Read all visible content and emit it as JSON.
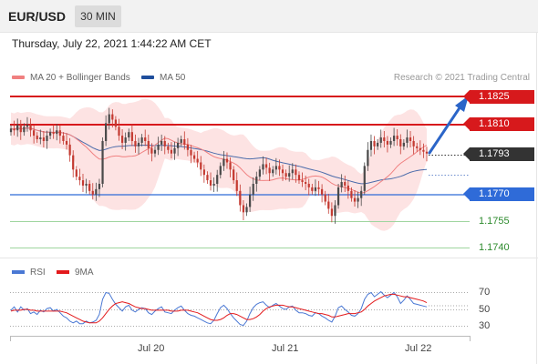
{
  "header": {
    "symbol": "EUR/USD",
    "timeframe": "30 MIN"
  },
  "datetime": "Thursday, July 22, 2021 1:44:22 AM CET",
  "legend": {
    "ma20": {
      "label": "MA 20 + Bollinger Bands",
      "color": "#f08080"
    },
    "ma50": {
      "label": "MA 50",
      "color": "#1f4e9c"
    }
  },
  "credit": "Research © 2021 Trading Central",
  "levels": {
    "r2": "1.1825",
    "r1": "1.1810",
    "current": "1.1793",
    "s1": "1.1770",
    "s2": "1.1755",
    "s3": "1.1740"
  },
  "colors": {
    "resistance": "#d7191c",
    "support": "#2f6bd8",
    "target": "#2e8b2e",
    "bollinger_fill": "#fde3e3",
    "arrow": "#2b65c8",
    "rsi": "#4a78d4",
    "rsi_ma": "#e31a1c"
  },
  "rsi": {
    "legend_rsi": "RSI",
    "legend_ma": "9MA",
    "ticks": [
      "70",
      "50",
      "30"
    ]
  },
  "x_axis": {
    "ticks": [
      "Jul 20",
      "Jul 21",
      "Jul 22"
    ]
  },
  "chart_data": {
    "type": "candlestick",
    "instrument": "EUR/USD",
    "interval": "30 MIN",
    "ylim": [
      1.1737,
      1.1832
    ],
    "price_lines": [
      1.1825,
      1.181,
      1.177,
      1.1755,
      1.174
    ],
    "current_price": 1.1793,
    "series": [
      {
        "name": "MA 20 + Bollinger Bands"
      },
      {
        "name": "MA 50"
      }
    ],
    "close": [
      1.1807,
      1.1806,
      1.1809,
      1.1805,
      1.1808,
      1.1809,
      1.1806,
      1.1803,
      1.1801,
      1.1802,
      1.18,
      1.1803,
      1.1805,
      1.1804,
      1.1806,
      1.1803,
      1.18,
      1.1798,
      1.1792,
      1.1784,
      1.178,
      1.1778,
      1.1775,
      1.1776,
      1.1772,
      1.177,
      1.1773,
      1.1776,
      1.18,
      1.181,
      1.1815,
      1.1812,
      1.1808,
      1.1803,
      1.1799,
      1.1802,
      1.1805,
      1.18,
      1.1797,
      1.1799,
      1.1802,
      1.18,
      1.1796,
      1.1793,
      1.1795,
      1.1798,
      1.18,
      1.1797,
      1.1795,
      1.1793,
      1.1796,
      1.1799,
      1.1801,
      1.1798,
      1.1795,
      1.1792,
      1.179,
      1.1788,
      1.1784,
      1.1781,
      1.1778,
      1.1775,
      1.1776,
      1.1781,
      1.1786,
      1.179,
      1.1788,
      1.1784,
      1.1778,
      1.1772,
      1.1764,
      1.176,
      1.1763,
      1.177,
      1.1776,
      1.178,
      1.1784,
      1.1787,
      1.1785,
      1.1782,
      1.1784,
      1.1786,
      1.1784,
      1.1782,
      1.178,
      1.1782,
      1.1784,
      1.1781,
      1.1778,
      1.1777,
      1.1776,
      1.1774,
      1.1772,
      1.1774,
      1.1773,
      1.177,
      1.1766,
      1.1762,
      1.1758,
      1.1764,
      1.1774,
      1.1777,
      1.1775,
      1.1772,
      1.1768,
      1.1766,
      1.1768,
      1.1772,
      1.1786,
      1.1795,
      1.18,
      1.1797,
      1.1799,
      1.1802,
      1.18,
      1.1798,
      1.18,
      1.1803,
      1.1801,
      1.1797,
      1.1799,
      1.1802,
      1.18,
      1.1797,
      1.1796,
      1.1795,
      1.1794,
      1.1793
    ],
    "rsi": [
      49,
      53,
      47,
      53,
      49,
      51,
      45,
      47,
      44,
      49,
      47,
      51,
      52,
      48,
      50,
      46,
      42,
      40,
      36,
      34,
      36,
      33,
      33,
      36,
      34,
      35,
      37,
      44,
      62,
      70,
      69,
      62,
      56,
      52,
      48,
      53,
      55,
      49,
      47,
      50,
      52,
      51,
      46,
      44,
      48,
      51,
      53,
      47,
      46,
      45,
      49,
      52,
      54,
      49,
      45,
      43,
      42,
      40,
      38,
      36,
      34,
      33,
      37,
      45,
      52,
      55,
      51,
      45,
      40,
      36,
      32,
      31,
      36,
      45,
      52,
      56,
      58,
      59,
      55,
      52,
      55,
      57,
      54,
      51,
      50,
      53,
      54,
      49,
      46,
      46,
      45,
      43,
      42,
      46,
      45,
      42,
      40,
      37,
      35,
      42,
      52,
      54,
      50,
      47,
      43,
      42,
      45,
      51,
      62,
      68,
      70,
      65,
      68,
      71,
      67,
      64,
      67,
      70,
      65,
      57,
      61,
      66,
      62,
      57,
      56,
      55,
      54,
      53
    ],
    "rsi_ma": [
      48,
      49,
      49,
      49,
      50,
      50,
      49,
      49,
      48,
      48,
      48,
      48,
      48,
      48,
      48,
      48,
      47,
      46,
      44,
      42,
      40,
      38,
      36,
      35,
      34,
      34,
      34,
      36,
      40,
      45,
      50,
      54,
      57,
      58,
      59,
      58,
      57,
      55,
      53,
      52,
      51,
      51,
      50,
      49,
      49,
      49,
      49,
      49,
      49,
      48,
      48,
      48,
      49,
      49,
      49,
      48,
      47,
      46,
      44,
      42,
      40,
      38,
      37,
      37,
      38,
      40,
      43,
      45,
      45,
      44,
      42,
      40,
      38,
      38,
      39,
      41,
      44,
      48,
      51,
      53,
      54,
      55,
      55,
      55,
      54,
      53,
      53,
      52,
      51,
      50,
      49,
      48,
      47,
      46,
      45,
      45,
      44,
      43,
      41,
      41,
      42,
      43,
      44,
      45,
      45,
      45,
      46,
      47,
      50,
      54,
      57,
      60,
      62,
      64,
      66,
      67,
      68,
      68,
      67,
      66,
      65,
      65,
      64,
      63,
      62,
      61,
      60,
      58
    ]
  }
}
